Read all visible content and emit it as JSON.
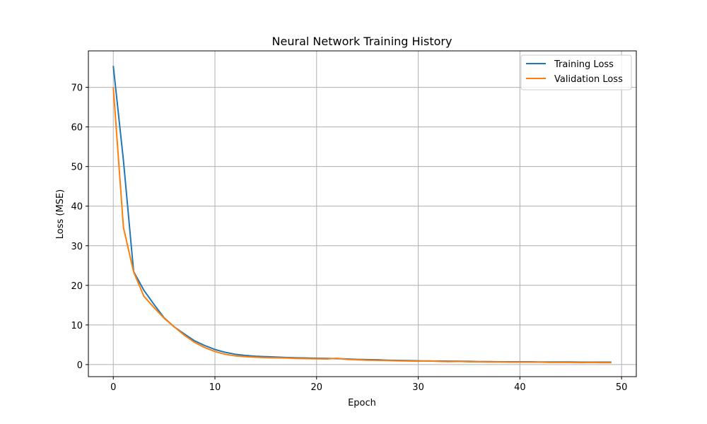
{
  "chart_data": {
    "type": "line",
    "title": "Neural Network Training History",
    "xlabel": "Epoch",
    "ylabel": "Loss (MSE)",
    "xlim": [
      -2.45,
      51.45
    ],
    "ylim": [
      -3.05,
      79.2
    ],
    "xticks": [
      0,
      10,
      20,
      30,
      40,
      50
    ],
    "yticks": [
      0,
      10,
      20,
      30,
      40,
      50,
      60,
      70
    ],
    "grid": true,
    "legend_position": "top-right",
    "x": [
      0,
      1,
      2,
      3,
      4,
      5,
      6,
      7,
      8,
      9,
      10,
      11,
      12,
      13,
      14,
      15,
      16,
      17,
      18,
      19,
      20,
      21,
      22,
      23,
      24,
      25,
      26,
      27,
      28,
      29,
      30,
      31,
      32,
      33,
      34,
      35,
      36,
      37,
      38,
      39,
      40,
      41,
      42,
      43,
      44,
      45,
      46,
      47,
      48,
      49
    ],
    "series": [
      {
        "name": "Training Loss",
        "color": "#1f77b4",
        "values": [
          75.4,
          51.5,
          23.5,
          18.8,
          15.2,
          11.8,
          9.5,
          7.7,
          6.0,
          4.8,
          3.8,
          3.1,
          2.6,
          2.3,
          2.1,
          2.0,
          1.9,
          1.8,
          1.7,
          1.65,
          1.6,
          1.55,
          1.5,
          1.4,
          1.3,
          1.25,
          1.2,
          1.1,
          1.05,
          1.0,
          0.95,
          0.9,
          0.9,
          0.85,
          0.85,
          0.8,
          0.75,
          0.75,
          0.7,
          0.7,
          0.7,
          0.7,
          0.65,
          0.65,
          0.65,
          0.65,
          0.6,
          0.6,
          0.6,
          0.6
        ]
      },
      {
        "name": "Validation Loss",
        "color": "#ff7f0e",
        "values": [
          70.0,
          34.6,
          23.4,
          17.3,
          14.4,
          11.7,
          9.5,
          7.4,
          5.6,
          4.3,
          3.3,
          2.6,
          2.2,
          2.0,
          1.85,
          1.75,
          1.7,
          1.65,
          1.55,
          1.5,
          1.45,
          1.4,
          1.6,
          1.3,
          1.2,
          1.1,
          1.05,
          1.0,
          0.95,
          0.9,
          0.85,
          0.95,
          0.8,
          0.75,
          0.8,
          0.7,
          0.7,
          0.65,
          0.65,
          0.6,
          0.6,
          0.6,
          0.6,
          0.55,
          0.55,
          0.55,
          0.5,
          0.55,
          0.5,
          0.5
        ]
      }
    ]
  }
}
